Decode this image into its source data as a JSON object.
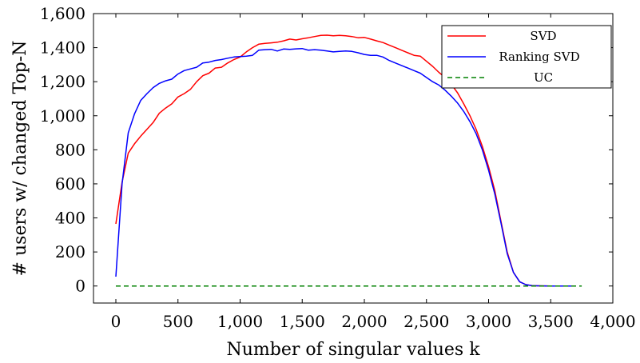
{
  "chart_data": {
    "type": "line",
    "title": "",
    "xlabel": "Number of singular values k",
    "ylabel": "# users w/ changed Top-N",
    "xlim": [
      -180,
      4000
    ],
    "ylim": [
      -100,
      1600
    ],
    "xticks": [
      0,
      500,
      1000,
      1500,
      2000,
      2500,
      3000,
      3500,
      4000
    ],
    "xtick_labels": [
      "0",
      "500",
      "1,000",
      "1,500",
      "2,000",
      "2,500",
      "3,000",
      "3,500",
      "4,000"
    ],
    "yticks": [
      0,
      200,
      400,
      600,
      800,
      1000,
      1200,
      1400,
      1600
    ],
    "ytick_labels": [
      "0",
      "200",
      "400",
      "600",
      "800",
      "1,000",
      "1,200",
      "1,400",
      "1,600"
    ],
    "grid": false,
    "legend_position": "top-right",
    "series": [
      {
        "name": "SVD",
        "color": "#ff0000",
        "dash": "solid",
        "x": [
          0,
          50,
          100,
          150,
          200,
          250,
          300,
          350,
          400,
          450,
          500,
          550,
          600,
          650,
          700,
          750,
          800,
          850,
          900,
          950,
          1000,
          1050,
          1100,
          1150,
          1200,
          1250,
          1300,
          1350,
          1400,
          1450,
          1500,
          1550,
          1600,
          1650,
          1700,
          1750,
          1800,
          1850,
          1900,
          1950,
          2000,
          2050,
          2100,
          2150,
          2200,
          2250,
          2300,
          2350,
          2400,
          2450,
          2500,
          2550,
          2600,
          2650,
          2700,
          2750,
          2800,
          2850,
          2900,
          2950,
          3000,
          3050,
          3100,
          3150,
          3200,
          3250,
          3300,
          3350,
          3400,
          3500,
          3600,
          3700
        ],
        "y": [
          365,
          610,
          780,
          835,
          880,
          920,
          960,
          1015,
          1045,
          1070,
          1110,
          1130,
          1155,
          1200,
          1235,
          1250,
          1280,
          1285,
          1310,
          1330,
          1345,
          1375,
          1400,
          1420,
          1425,
          1428,
          1432,
          1440,
          1450,
          1445,
          1452,
          1458,
          1465,
          1472,
          1473,
          1470,
          1472,
          1470,
          1465,
          1458,
          1460,
          1450,
          1440,
          1430,
          1415,
          1400,
          1385,
          1370,
          1355,
          1350,
          1320,
          1290,
          1255,
          1225,
          1185,
          1135,
          1070,
          1000,
          920,
          820,
          700,
          560,
          380,
          200,
          80,
          25,
          8,
          2,
          1,
          0,
          0,
          0
        ]
      },
      {
        "name": "Ranking SVD",
        "color": "#0000ff",
        "dash": "solid",
        "x": [
          0,
          50,
          100,
          150,
          200,
          250,
          300,
          350,
          400,
          450,
          500,
          550,
          600,
          650,
          700,
          750,
          800,
          850,
          900,
          950,
          1000,
          1050,
          1100,
          1150,
          1200,
          1250,
          1300,
          1350,
          1400,
          1450,
          1500,
          1550,
          1600,
          1650,
          1700,
          1750,
          1800,
          1850,
          1900,
          1950,
          2000,
          2050,
          2100,
          2150,
          2200,
          2250,
          2300,
          2350,
          2400,
          2450,
          2500,
          2550,
          2600,
          2650,
          2700,
          2750,
          2800,
          2850,
          2900,
          2950,
          3000,
          3050,
          3100,
          3150,
          3200,
          3250,
          3300,
          3350,
          3400,
          3500,
          3600,
          3700
        ],
        "y": [
          55,
          600,
          900,
          1010,
          1090,
          1130,
          1165,
          1190,
          1205,
          1215,
          1245,
          1265,
          1275,
          1285,
          1310,
          1315,
          1325,
          1330,
          1338,
          1345,
          1348,
          1350,
          1355,
          1385,
          1388,
          1390,
          1380,
          1392,
          1390,
          1393,
          1395,
          1385,
          1388,
          1385,
          1380,
          1375,
          1378,
          1380,
          1378,
          1370,
          1360,
          1355,
          1355,
          1345,
          1325,
          1310,
          1295,
          1280,
          1265,
          1250,
          1225,
          1200,
          1180,
          1150,
          1115,
          1075,
          1025,
          965,
          895,
          800,
          680,
          540,
          370,
          190,
          80,
          25,
          8,
          2,
          1,
          0,
          0,
          0
        ]
      },
      {
        "name": "UC",
        "color": "#008000",
        "dash": "dashed",
        "x": [
          0,
          3750
        ],
        "y": [
          0,
          0
        ]
      }
    ]
  }
}
